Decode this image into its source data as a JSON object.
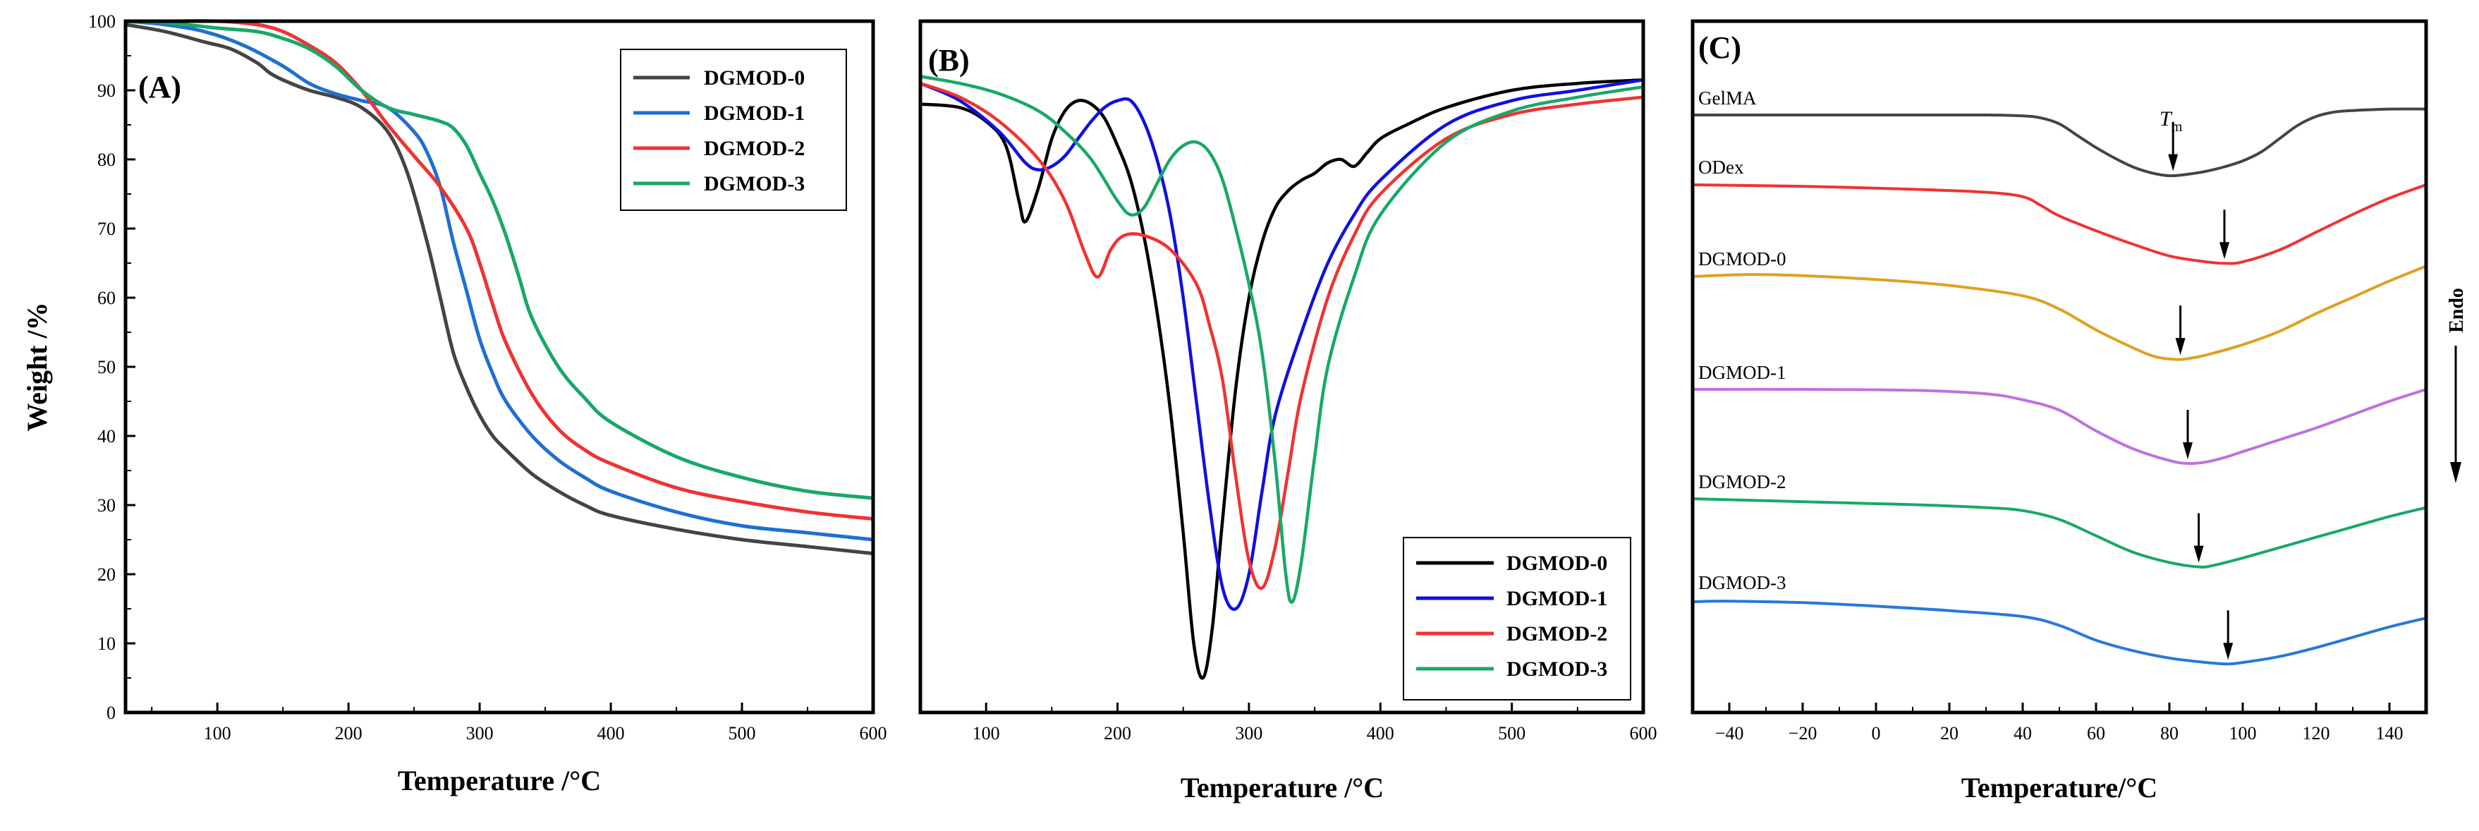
{
  "colors": {
    "black": "#000000",
    "gray": "#444444",
    "blue": "#1f6fd1",
    "red": "#f03232",
    "green": "#18a868",
    "pure_blue": "#1010e0",
    "orange": "#e0a020",
    "purple": "#c070e0",
    "mid_blue": "#2878d8"
  },
  "chart_data": [
    {
      "panel": "A",
      "type": "line",
      "label": "(A)",
      "xlabel": "Temperature /°C",
      "ylabel": "Weight /%",
      "xlim": [
        30,
        600
      ],
      "ylim": [
        0,
        100
      ],
      "xticks": [
        100,
        200,
        300,
        400,
        500,
        600
      ],
      "yticks": [
        0,
        10,
        20,
        30,
        40,
        50,
        60,
        70,
        80,
        90,
        100
      ],
      "legend": "top-right",
      "series": [
        {
          "name": "DGMOD-0",
          "color": "#444444",
          "x": [
            30,
            60,
            90,
            110,
            130,
            140,
            150,
            170,
            190,
            210,
            230,
            245,
            260,
            270,
            280,
            290,
            300,
            310,
            320,
            340,
            360,
            380,
            400,
            450,
            500,
            550,
            600
          ],
          "y": [
            99.5,
            98.5,
            97,
            96,
            94,
            92.5,
            91.5,
            90,
            89,
            87.5,
            84,
            78,
            68,
            60,
            52,
            47,
            43,
            40,
            38,
            34.5,
            32,
            30,
            28.5,
            26.5,
            25,
            24,
            23
          ]
        },
        {
          "name": "DGMOD-1",
          "color": "#1f6fd1",
          "x": [
            30,
            60,
            90,
            120,
            150,
            170,
            190,
            210,
            230,
            250,
            260,
            270,
            280,
            290,
            300,
            310,
            320,
            340,
            360,
            380,
            400,
            450,
            500,
            550,
            600
          ],
          "y": [
            100,
            99.5,
            98.5,
            96.5,
            93.5,
            91,
            89.5,
            88.5,
            87.5,
            84,
            81,
            76,
            68,
            61,
            54,
            49,
            45,
            40,
            36.5,
            34,
            32,
            29,
            27,
            26,
            25
          ]
        },
        {
          "name": "DGMOD-2",
          "color": "#f03232",
          "x": [
            30,
            60,
            100,
            130,
            150,
            170,
            190,
            210,
            230,
            250,
            270,
            290,
            300,
            310,
            320,
            340,
            360,
            380,
            400,
            450,
            500,
            550,
            600
          ],
          "y": [
            100,
            100,
            100,
            99.5,
            98.5,
            96.5,
            94,
            90,
            85,
            80.5,
            76,
            70,
            65,
            59,
            53.5,
            46,
            41,
            38,
            36,
            32.5,
            30.5,
            29,
            28
          ]
        },
        {
          "name": "DGMOD-3",
          "color": "#18a868",
          "x": [
            30,
            60,
            100,
            130,
            150,
            170,
            190,
            210,
            230,
            250,
            270,
            280,
            290,
            300,
            310,
            320,
            330,
            340,
            360,
            380,
            400,
            450,
            500,
            550,
            600
          ],
          "y": [
            100,
            99.8,
            99,
            98.5,
            97.5,
            96,
            93.5,
            90,
            87.5,
            86.5,
            85.5,
            84.5,
            82,
            78,
            74,
            69,
            63,
            57,
            50,
            45.5,
            42,
            37,
            34,
            32,
            31
          ]
        }
      ]
    },
    {
      "panel": "B",
      "type": "line",
      "label": "(B)",
      "xlabel": "Temperature /°C",
      "xlim": [
        50,
        600
      ],
      "ylim": [
        0,
        100
      ],
      "xticks": [
        100,
        200,
        300,
        400,
        500,
        600
      ],
      "legend": "bottom-right",
      "series": [
        {
          "name": "DGMOD-0",
          "color": "#000000",
          "x": [
            50,
            80,
            100,
            115,
            125,
            130,
            140,
            150,
            160,
            170,
            180,
            190,
            200,
            210,
            220,
            230,
            240,
            250,
            258,
            265,
            272,
            280,
            290,
            300,
            310,
            320,
            330,
            340,
            350,
            360,
            370,
            380,
            390,
            400,
            420,
            450,
            500,
            550,
            600
          ],
          "y": [
            88,
            87.5,
            85.5,
            82,
            74,
            71,
            76,
            83,
            87,
            88.5,
            88,
            86,
            82,
            77,
            69,
            58,
            44,
            26,
            10,
            5,
            12,
            28,
            47,
            60,
            68,
            73,
            75.5,
            77,
            78,
            79.5,
            80,
            79,
            81,
            83,
            85,
            87.5,
            90,
            91,
            91.5
          ]
        },
        {
          "name": "DGMOD-1",
          "color": "#1010e0",
          "x": [
            50,
            80,
            110,
            130,
            140,
            150,
            160,
            170,
            180,
            190,
            200,
            210,
            220,
            230,
            240,
            250,
            260,
            270,
            280,
            290,
            300,
            310,
            320,
            340,
            360,
            380,
            400,
            450,
            500,
            550,
            600
          ],
          "y": [
            91,
            88.5,
            84,
            79.5,
            78.5,
            79,
            80.5,
            83,
            85.5,
            87.5,
            88.5,
            88.5,
            85.5,
            80,
            72,
            60,
            45,
            30,
            18,
            15,
            20,
            32,
            43,
            55,
            65,
            72,
            77,
            85,
            88.5,
            90,
            91.5
          ]
        },
        {
          "name": "DGMOD-2",
          "color": "#f03232",
          "x": [
            50,
            80,
            110,
            140,
            160,
            175,
            185,
            195,
            205,
            220,
            240,
            260,
            270,
            280,
            290,
            300,
            310,
            320,
            330,
            340,
            360,
            380,
            400,
            450,
            500,
            550,
            600
          ],
          "y": [
            91,
            89,
            85.5,
            80,
            74,
            66.5,
            63,
            67,
            69,
            69,
            67,
            62,
            56,
            48,
            34,
            22,
            18,
            24,
            35,
            46,
            60,
            69,
            75,
            83,
            86.5,
            88,
            89
          ]
        },
        {
          "name": "DGMOD-3",
          "color": "#18a868",
          "x": [
            50,
            80,
            110,
            140,
            160,
            180,
            200,
            210,
            220,
            230,
            240,
            250,
            260,
            270,
            280,
            290,
            300,
            310,
            320,
            328,
            333,
            340,
            350,
            360,
            380,
            400,
            450,
            500,
            550,
            600
          ],
          "y": [
            92,
            91,
            89.5,
            87,
            84,
            80,
            74,
            72,
            73,
            76.5,
            80,
            82,
            82.5,
            81,
            77,
            70,
            62,
            52,
            36,
            20,
            16,
            22,
            37,
            50,
            63,
            72,
            82.5,
            87,
            89,
            90.5
          ]
        }
      ]
    },
    {
      "panel": "C",
      "type": "line",
      "label": "(C)",
      "xlabel": "Temperature/°C",
      "xlim": [
        -50,
        150
      ],
      "xticks": [
        -40,
        -20,
        0,
        20,
        40,
        60,
        80,
        100,
        120,
        140
      ],
      "endo_label": "Endo",
      "tm_label": "T",
      "tm_subscript": "m",
      "series": [
        {
          "name": "GelMA",
          "color": "#444444",
          "baseline": 0,
          "x": [
            -50,
            -20,
            10,
            30,
            40,
            45,
            50,
            55,
            60,
            65,
            70,
            75,
            80,
            85,
            90,
            95,
            100,
            105,
            110,
            115,
            120,
            125,
            130,
            140,
            150
          ],
          "d": [
            0,
            0,
            0,
            0,
            0.3,
            1,
            3,
            7,
            11,
            14.5,
            17.5,
            19.5,
            20.5,
            20,
            19,
            17.5,
            15.5,
            12.5,
            8,
            3.5,
            0.5,
            -1,
            -1.5,
            -2,
            -2
          ],
          "marker_x": 81
        },
        {
          "name": "ODex",
          "color": "#f03232",
          "baseline": 0,
          "x": [
            -50,
            -20,
            10,
            30,
            40,
            45,
            50,
            60,
            70,
            80,
            90,
            95,
            100,
            110,
            120,
            130,
            140,
            150
          ],
          "d": [
            0,
            0.5,
            1.5,
            2.5,
            4,
            7,
            10.5,
            15.5,
            20,
            24,
            26,
            26.5,
            26,
            22,
            16,
            10,
            4.5,
            0
          ],
          "marker_x": 95
        },
        {
          "name": "DGMOD-0",
          "color": "#e0a020",
          "baseline": 0,
          "x": [
            -50,
            -35,
            -20,
            0,
            20,
            40,
            50,
            60,
            70,
            76,
            82,
            86,
            90,
            100,
            110,
            120,
            130,
            140,
            150
          ],
          "d": [
            0,
            -0.7,
            -0.3,
            1,
            3,
            6.5,
            11,
            18,
            24,
            27,
            28,
            27.5,
            26.5,
            23,
            18.5,
            12.5,
            7,
            1.5,
            -3.5
          ],
          "marker_x": 83
        },
        {
          "name": "DGMOD-1",
          "color": "#c070e0",
          "baseline": 0,
          "x": [
            -50,
            -20,
            10,
            30,
            40,
            50,
            60,
            70,
            80,
            85,
            90,
            95,
            100,
            110,
            120,
            130,
            140,
            150
          ],
          "d": [
            0,
            0,
            0.3,
            1.5,
            3.5,
            7,
            14,
            20,
            24,
            25,
            24.5,
            23,
            21,
            17,
            13,
            8.5,
            4,
            0
          ],
          "marker_x": 85
        },
        {
          "name": "DGMOD-2",
          "color": "#18a868",
          "baseline": 0,
          "x": [
            -50,
            -20,
            10,
            30,
            40,
            50,
            60,
            70,
            80,
            88,
            92,
            100,
            110,
            120,
            130,
            140,
            150
          ],
          "d": [
            0,
            1,
            2,
            3,
            4,
            7,
            12.5,
            18,
            21.5,
            23,
            22.5,
            20,
            16.5,
            13,
            9.5,
            6,
            3
          ],
          "marker_x": 88
        },
        {
          "name": "DGMOD-3",
          "color": "#2878d8",
          "baseline": 0,
          "x": [
            -50,
            -40,
            -20,
            0,
            20,
            40,
            50,
            60,
            70,
            80,
            90,
            96,
            100,
            110,
            120,
            130,
            140,
            150
          ],
          "d": [
            0,
            -0.2,
            0.3,
            1.5,
            3,
            5,
            8,
            13,
            16.5,
            19,
            20.5,
            21,
            20.5,
            18.5,
            15.5,
            12,
            8.5,
            5.5
          ],
          "marker_x": 96
        }
      ]
    }
  ]
}
